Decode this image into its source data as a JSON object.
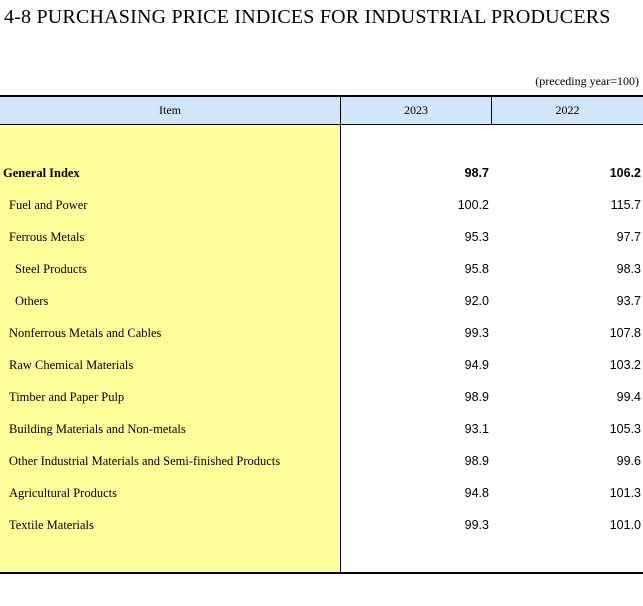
{
  "title": "4-8  PURCHASING PRICE INDICES FOR INDUSTRIAL PRODUCERS",
  "unit_note": "(preceding year=100)",
  "table": {
    "headers": {
      "item": "Item",
      "col1": "2023",
      "col2": "2022"
    },
    "rows": [
      {
        "label": "General Index",
        "v2023": "98.7",
        "v2022": "106.2"
      },
      {
        "label": "Fuel and Power",
        "v2023": "100.2",
        "v2022": "115.7"
      },
      {
        "label": "Ferrous Metals",
        "v2023": "95.3",
        "v2022": "97.7"
      },
      {
        "label": "Steel Products",
        "v2023": "95.8",
        "v2022": "98.3"
      },
      {
        "label": "Others",
        "v2023": "92.0",
        "v2022": "93.7"
      },
      {
        "label": "Nonferrous Metals and Cables",
        "v2023": "99.3",
        "v2022": "107.8"
      },
      {
        "label": "Raw Chemical Materials",
        "v2023": "94.9",
        "v2022": "103.2"
      },
      {
        "label": "Timber and Paper Pulp",
        "v2023": "98.9",
        "v2022": "99.4"
      },
      {
        "label": "Building Materials and Non-metals",
        "v2023": "93.1",
        "v2022": "105.3"
      },
      {
        "label": "Other Industrial Materials and Semi-finished Products",
        "v2023": "98.9",
        "v2022": "99.6"
      },
      {
        "label": "Agricultural Products",
        "v2023": "94.8",
        "v2022": "101.3"
      },
      {
        "label": "Textile Materials",
        "v2023": "99.3",
        "v2022": "101.0"
      }
    ]
  }
}
